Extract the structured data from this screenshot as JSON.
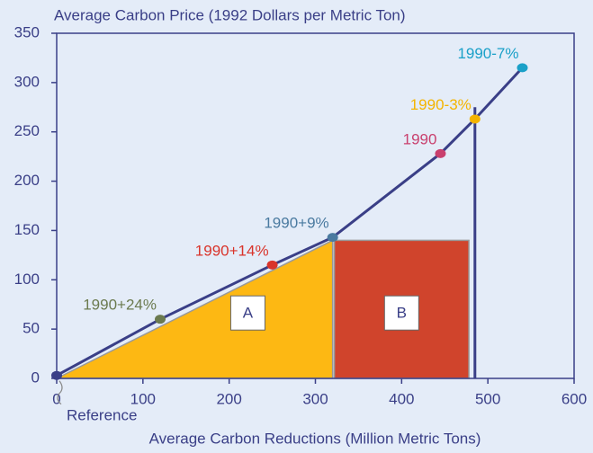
{
  "chart_data": {
    "type": "scatter",
    "title": "Average Carbon Price (1992 Dollars per Metric Ton)",
    "x_label": "Average Carbon Reductions (Million Metric Tons)",
    "x": [
      0,
      120,
      250,
      320,
      445,
      485,
      540
    ],
    "values": [
      3,
      60,
      115,
      143,
      228,
      263,
      315
    ],
    "point_labels": [
      "Reference",
      "1990+24%",
      "1990+14%",
      "1990+9%",
      "1990",
      "1990-3%",
      "1990-7%"
    ],
    "point_colors": [
      "#3a3f87",
      "#6b7a4f",
      "#d9342b",
      "#4a7aa0",
      "#c9406e",
      "#f4b400",
      "#1aa0c8"
    ],
    "line_color": "#3a3f87",
    "regions": [
      {
        "label": "A",
        "shape": "triangle",
        "x": [
          0,
          320
        ],
        "y": [
          0,
          140
        ],
        "color": "#fdb813"
      },
      {
        "label": "B",
        "shape": "rect",
        "x": [
          322,
          478
        ],
        "y": [
          0,
          140
        ],
        "color": "#d0442c"
      }
    ],
    "marker_line": {
      "x": 485,
      "y": [
        0,
        275
      ]
    },
    "xlim": [
      0,
      600
    ],
    "xticks": [
      0,
      100,
      200,
      300,
      400,
      500,
      600
    ],
    "ylim": [
      0,
      350
    ],
    "yticks": [
      0,
      50,
      100,
      150,
      200,
      250,
      300,
      350
    ]
  }
}
